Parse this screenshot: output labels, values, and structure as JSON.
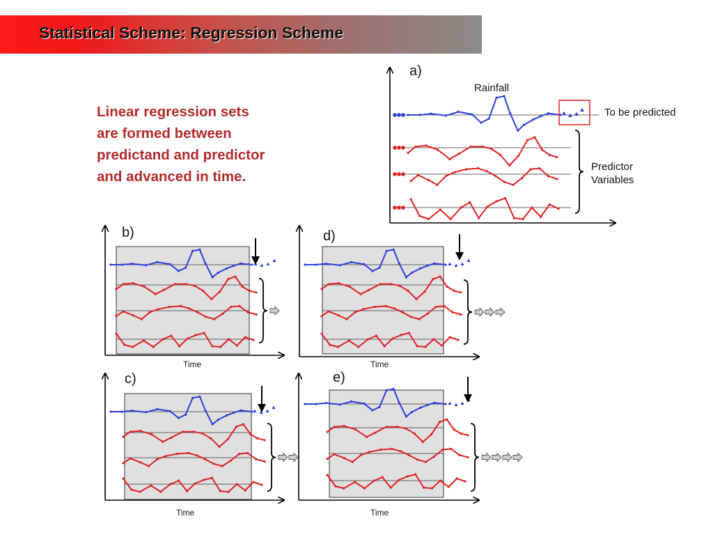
{
  "slide": {
    "title": "Statistical Scheme: Regression Scheme",
    "description_lines": [
      "Linear regression sets",
      "are formed between",
      "predictand and predictor",
      "and advanced in time."
    ]
  },
  "panels": [
    {
      "id": "a",
      "label": "a)",
      "series_labels": {
        "rainfall": "Rainfall",
        "to_be_predicted": "To be predicted",
        "predictor": "Predictor",
        "variables": "Variables"
      }
    },
    {
      "id": "b",
      "label": "b)",
      "xlabel": "Time",
      "advance_steps": 1
    },
    {
      "id": "c",
      "label": "c)",
      "xlabel": "Time",
      "advance_steps": 2
    },
    {
      "id": "d",
      "label": "d)",
      "xlabel": "Time",
      "advance_steps": 3
    },
    {
      "id": "e",
      "label": "e)",
      "xlabel": "Time",
      "advance_steps": 4
    }
  ],
  "colors": {
    "predictand": "#2a3fd8",
    "predictor": "#e02020",
    "window_fill": "#e0e0e0",
    "highlight_box": "#e02020",
    "axis": "#000000",
    "arrow_fill": "#cfcfcf"
  }
}
